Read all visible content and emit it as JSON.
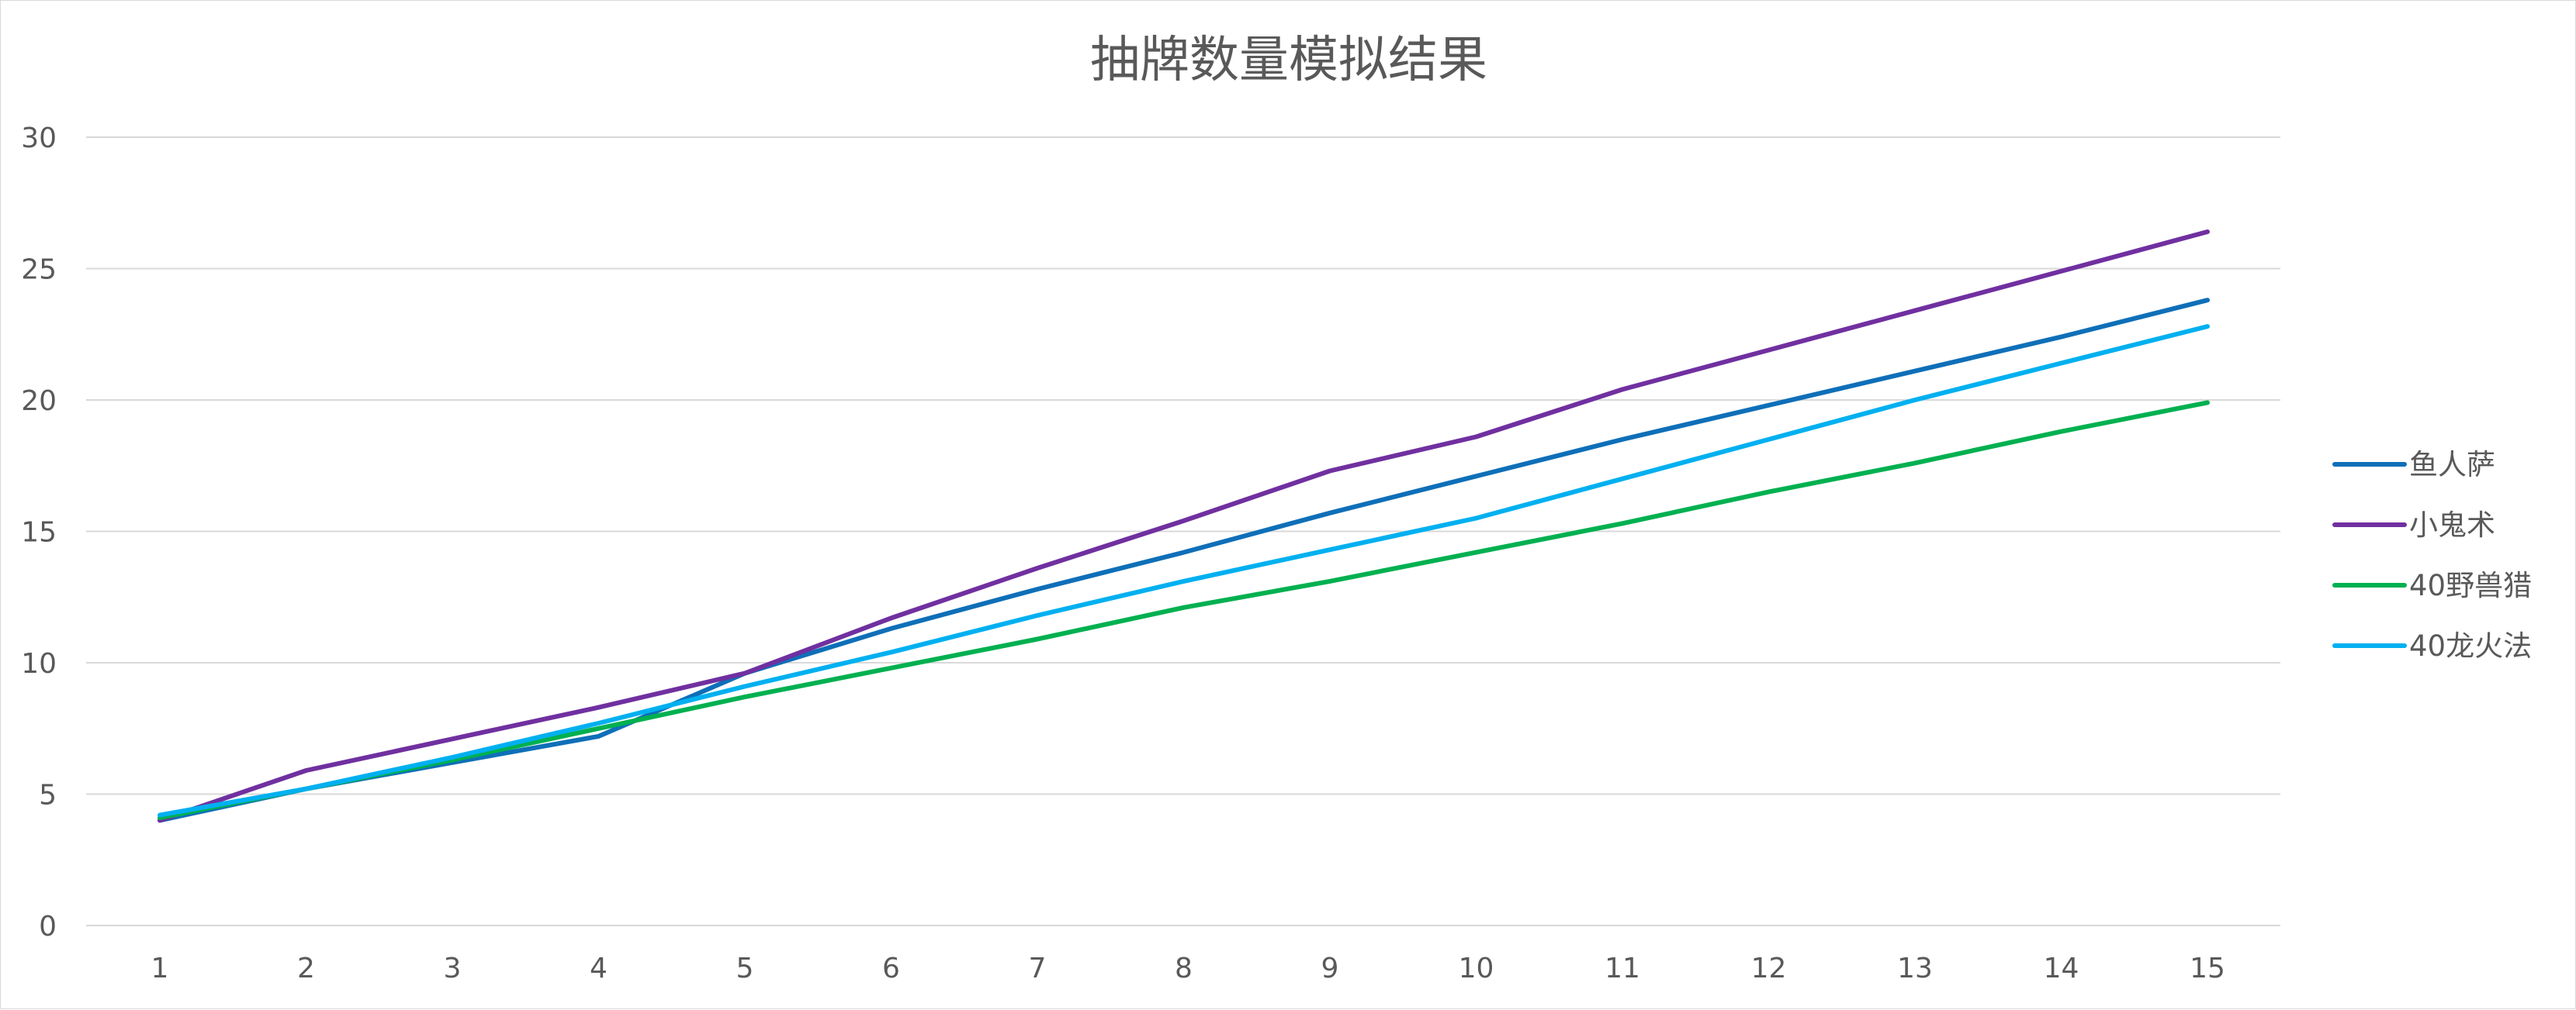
{
  "chart_data": {
    "type": "line",
    "title": "抽牌数量模拟结果",
    "x": [
      "1",
      "2",
      "3",
      "4",
      "5",
      "6",
      "7",
      "8",
      "9",
      "10",
      "11",
      "12",
      "13",
      "14",
      "15"
    ],
    "ylim": [
      0,
      30
    ],
    "yticks": [
      "0",
      "5",
      "10",
      "15",
      "20",
      "25",
      "30"
    ],
    "grid": true,
    "legend_position": "right",
    "series": [
      {
        "name": "鱼人萨",
        "color": "#0E6FB8",
        "values": [
          4.0,
          5.2,
          6.2,
          7.2,
          9.6,
          11.3,
          12.8,
          14.2,
          15.7,
          17.1,
          18.5,
          19.8,
          21.1,
          22.4,
          23.8
        ]
      },
      {
        "name": "小鬼术",
        "color": "#7030A0",
        "values": [
          4.0,
          5.9,
          7.1,
          8.3,
          9.6,
          11.7,
          13.6,
          15.4,
          17.3,
          18.6,
          20.4,
          21.9,
          23.4,
          24.9,
          26.4
        ]
      },
      {
        "name": "40野兽猎",
        "color": "#00B050",
        "values": [
          4.1,
          5.2,
          6.3,
          7.5,
          8.7,
          9.8,
          10.9,
          12.1,
          13.1,
          14.2,
          15.3,
          16.5,
          17.6,
          18.8,
          19.9
        ]
      },
      {
        "name": "40龙火法",
        "color": "#00B0F0",
        "values": [
          4.2,
          5.2,
          6.4,
          7.7,
          9.1,
          10.4,
          11.8,
          13.1,
          14.3,
          15.5,
          17.0,
          18.5,
          20.0,
          21.4,
          22.8
        ]
      }
    ]
  }
}
